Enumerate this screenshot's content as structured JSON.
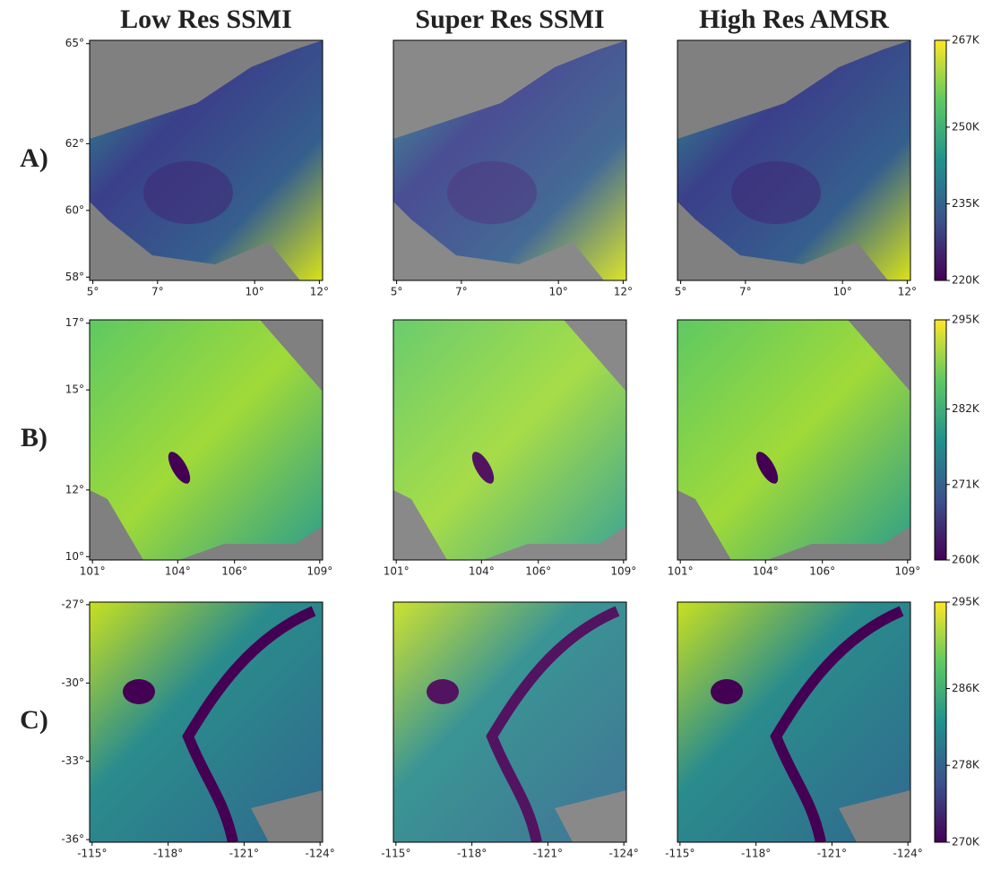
{
  "column_titles": [
    "Low Res SSMI",
    "Super Res SSMI",
    "High Res AMSR"
  ],
  "chart_data": [
    {
      "type": "heatmap",
      "row_label": "A)",
      "xlim": [
        4.9,
        12.1
      ],
      "ylim": [
        57.9,
        65.1
      ],
      "xticks": [
        {
          "value": 5,
          "label": "5°"
        },
        {
          "value": 7,
          "label": "7°"
        },
        {
          "value": 10,
          "label": "10°"
        },
        {
          "value": 12,
          "label": "12°"
        }
      ],
      "yticks": [
        {
          "value": 58,
          "label": "58°"
        },
        {
          "value": 60,
          "label": "60°"
        },
        {
          "value": 62,
          "label": "62°"
        },
        {
          "value": 65,
          "label": "65°"
        }
      ],
      "colorbar": {
        "lim": [
          220,
          267
        ],
        "ticks": [
          {
            "value": 220,
            "label": "220K"
          },
          {
            "value": 235,
            "label": "235K"
          },
          {
            "value": 250,
            "label": "250K"
          },
          {
            "value": 267,
            "label": "267K"
          }
        ]
      }
    },
    {
      "type": "heatmap",
      "row_label": "B)",
      "xlim": [
        100.9,
        109.1
      ],
      "ylim": [
        9.9,
        17.1
      ],
      "xticks": [
        {
          "value": 101,
          "label": "101°"
        },
        {
          "value": 104,
          "label": "104°"
        },
        {
          "value": 106,
          "label": "106°"
        },
        {
          "value": 109,
          "label": "109°"
        }
      ],
      "yticks": [
        {
          "value": 10,
          "label": "10°"
        },
        {
          "value": 12,
          "label": "12°"
        },
        {
          "value": 15,
          "label": "15°"
        },
        {
          "value": 17,
          "label": "17°"
        }
      ],
      "colorbar": {
        "lim": [
          260,
          295
        ],
        "ticks": [
          {
            "value": 260,
            "label": "260K"
          },
          {
            "value": 271,
            "label": "271K"
          },
          {
            "value": 282,
            "label": "282K"
          },
          {
            "value": 295,
            "label": "295K"
          }
        ]
      }
    },
    {
      "type": "heatmap",
      "row_label": "C)",
      "xlim": [
        -114.9,
        -124.1
      ],
      "ylim": [
        -36.1,
        -26.9
      ],
      "xticks": [
        {
          "value": -115,
          "label": "-115°"
        },
        {
          "value": -118,
          "label": "-118°"
        },
        {
          "value": -121,
          "label": "-121°"
        },
        {
          "value": -124,
          "label": "-124°"
        }
      ],
      "yticks": [
        {
          "value": -36,
          "label": "-36°"
        },
        {
          "value": -33,
          "label": "-33°"
        },
        {
          "value": -30,
          "label": "-30°"
        },
        {
          "value": -27,
          "label": "-27°"
        }
      ],
      "colorbar": {
        "lim": [
          270,
          295
        ],
        "ticks": [
          {
            "value": 270,
            "label": "270K"
          },
          {
            "value": 278,
            "label": "278K"
          },
          {
            "value": 286,
            "label": "286K"
          },
          {
            "value": 295,
            "label": "295K"
          }
        ]
      }
    }
  ]
}
